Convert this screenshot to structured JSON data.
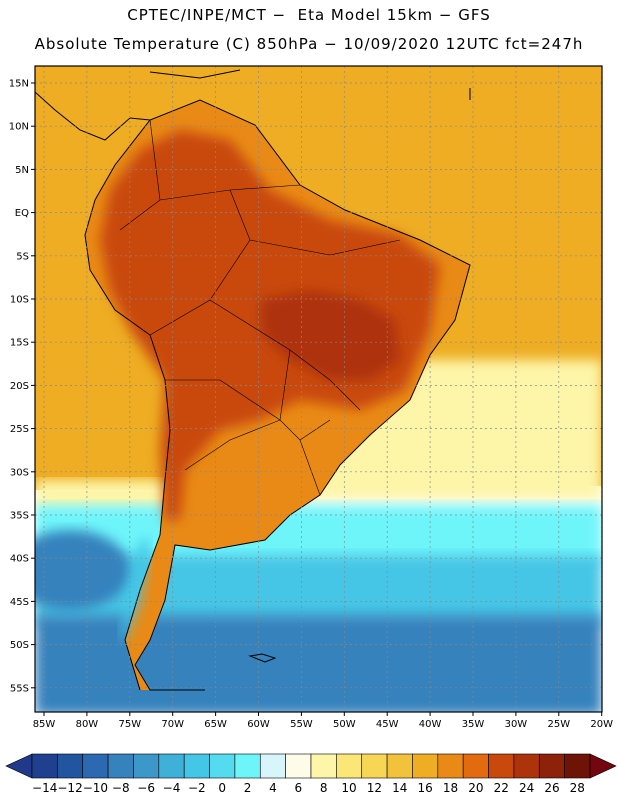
{
  "title": {
    "line1": "CPTEC/INPE/MCT −  Eta Model 15km − GFS",
    "line2": "Absolute Temperature (C) 850hPa − 10/09/2020 12UTC fct=247h"
  },
  "axes": {
    "lat_labels": [
      "15N",
      "10N",
      "5N",
      "EQ",
      "5S",
      "10S",
      "15S",
      "20S",
      "25S",
      "30S",
      "35S",
      "40S",
      "45S",
      "50S",
      "55S"
    ],
    "lon_labels": [
      "85W",
      "80W",
      "75W",
      "70W",
      "65W",
      "60W",
      "55W",
      "50W",
      "45W",
      "40W",
      "35W",
      "30W",
      "25W",
      "20W"
    ]
  },
  "colorbar": {
    "labels": [
      "-14",
      "-12",
      "-10",
      "-8",
      "-6",
      "-4",
      "-2",
      "0",
      "2",
      "4",
      "6",
      "8",
      "10",
      "12",
      "14",
      "16",
      "18",
      "20",
      "22",
      "24",
      "26",
      "28"
    ],
    "colors": [
      "#1f3f8f",
      "#2255a0",
      "#2c69b0",
      "#3582bd",
      "#3c98c9",
      "#3fb0d8",
      "#44c6e6",
      "#55dbef",
      "#6ef5fa",
      "#d7f6fb",
      "#fffbe9",
      "#fdf5a8",
      "#fbe777",
      "#f8d655",
      "#f3c23c",
      "#eead23",
      "#e98a16",
      "#e26a0f",
      "#c9480b",
      "#ad330a",
      "#8d2109",
      "#6e1407"
    ],
    "left_arrow_color": "#20398a",
    "right_arrow_color": "#73060f"
  },
  "map_colors": {
    "ocean_north": "#eead23",
    "warm_land": "#e98a16",
    "hot_land": "#c9480b",
    "very_hot": "#ad330a",
    "pale_band": "#fdf5a8",
    "cool_band": "#6ef5fa",
    "cold_band": "#44c6e6",
    "deep_cold": "#3582bd",
    "coast": "#000000"
  }
}
